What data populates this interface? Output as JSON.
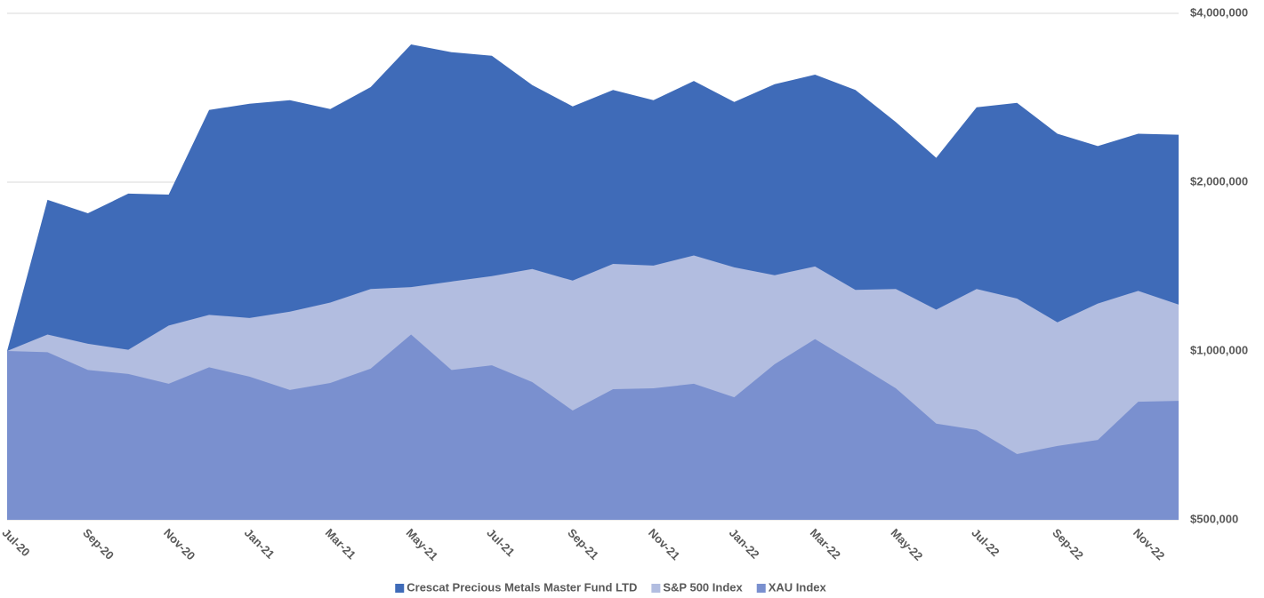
{
  "chart_data": {
    "type": "area",
    "categories": [
      "Jul-20",
      null,
      "Sep-20",
      null,
      "Nov-20",
      null,
      "Jan-21",
      null,
      "Mar-21",
      null,
      "May-21",
      null,
      "Jul-21",
      null,
      "Sep-21",
      null,
      "Nov-21",
      null,
      "Jan-22",
      null,
      "Mar-22",
      null,
      "May-22",
      null,
      "Jul-22",
      null,
      "Sep-22",
      null,
      "Nov-22",
      null
    ],
    "series": [
      {
        "name": "Crescat Precious Metals Master Fund LTD",
        "color": "#3f6bb8",
        "values": [
          1000000,
          1860000,
          1760000,
          1908000,
          1900000,
          2690000,
          2760000,
          2800000,
          2700000,
          2955000,
          3520000,
          3410000,
          3360000,
          2980000,
          2730000,
          2920000,
          2800000,
          3030000,
          2780000,
          2990000,
          3110000,
          2920000,
          2560000,
          2210000,
          2720000,
          2770000,
          2440000,
          2320000,
          2440000,
          2430000
        ]
      },
      {
        "name": "S&P 500 Index",
        "color": "#b2bde0",
        "values": [
          1000000,
          1070000,
          1030000,
          1005000,
          1110000,
          1160000,
          1145000,
          1175000,
          1220000,
          1290000,
          1300000,
          1330000,
          1360000,
          1400000,
          1335000,
          1430000,
          1420000,
          1480000,
          1410000,
          1365000,
          1415000,
          1285000,
          1290000,
          1185000,
          1290000,
          1240000,
          1125000,
          1215000,
          1280000,
          1210000
        ]
      },
      {
        "name": "XAU Index",
        "color": "#7a90cf",
        "values": [
          1000000,
          995000,
          925000,
          910000,
          874000,
          935000,
          900000,
          852000,
          877000,
          930000,
          1070000,
          925000,
          943000,
          880000,
          783000,
          855000,
          858000,
          874000,
          827000,
          947000,
          1050000,
          950000,
          858000,
          742000,
          723000,
          655000,
          677000,
          694000,
          812000,
          815000
        ]
      }
    ],
    "log_scale": true,
    "ylim": [
      500000,
      4000000
    ],
    "yticks": [
      {
        "value": 500000,
        "label": "$500,000"
      },
      {
        "value": 1000000,
        "label": "$1,000,000"
      },
      {
        "value": 2000000,
        "label": "$2,000,000"
      },
      {
        "value": 4000000,
        "label": "$4,000,000"
      }
    ],
    "grid": true,
    "legend": "bottom"
  }
}
